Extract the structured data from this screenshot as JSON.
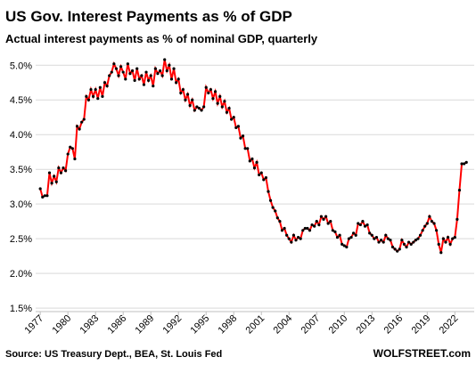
{
  "chart_data": {
    "type": "line",
    "title": "US Gov. Interest Payments as % of GDP",
    "subtitle": "Actual interest payments as % of nominal GDP, quarterly",
    "source": "Source: US Treasury Dept., BEA, St. Louis Fed",
    "brand": "WOLFSTREET.com",
    "x": [
      1977,
      1977.25,
      1977.5,
      1977.75,
      1978,
      1978.25,
      1978.5,
      1978.75,
      1979,
      1979.25,
      1979.5,
      1979.75,
      1980,
      1980.25,
      1980.5,
      1980.75,
      1981,
      1981.25,
      1981.5,
      1981.75,
      1982,
      1982.25,
      1982.5,
      1982.75,
      1983,
      1983.25,
      1983.5,
      1983.75,
      1984,
      1984.25,
      1984.5,
      1984.75,
      1985,
      1985.25,
      1985.5,
      1985.75,
      1986,
      1986.25,
      1986.5,
      1986.75,
      1987,
      1987.25,
      1987.5,
      1987.75,
      1988,
      1988.25,
      1988.5,
      1988.75,
      1989,
      1989.25,
      1989.5,
      1989.75,
      1990,
      1990.25,
      1990.5,
      1990.75,
      1991,
      1991.25,
      1991.5,
      1991.75,
      1992,
      1992.25,
      1992.5,
      1992.75,
      1993,
      1993.25,
      1993.5,
      1993.75,
      1994,
      1994.25,
      1994.5,
      1994.75,
      1995,
      1995.25,
      1995.5,
      1995.75,
      1996,
      1996.25,
      1996.5,
      1996.75,
      1997,
      1997.25,
      1997.5,
      1997.75,
      1998,
      1998.25,
      1998.5,
      1998.75,
      1999,
      1999.25,
      1999.5,
      1999.75,
      2000,
      2000.25,
      2000.5,
      2000.75,
      2001,
      2001.25,
      2001.5,
      2001.75,
      2002,
      2002.25,
      2002.5,
      2002.75,
      2003,
      2003.25,
      2003.5,
      2003.75,
      2004,
      2004.25,
      2004.5,
      2004.75,
      2005,
      2005.25,
      2005.5,
      2005.75,
      2006,
      2006.25,
      2006.5,
      2006.75,
      2007,
      2007.25,
      2007.5,
      2007.75,
      2008,
      2008.25,
      2008.5,
      2008.75,
      2009,
      2009.25,
      2009.5,
      2009.75,
      2010,
      2010.25,
      2010.5,
      2010.75,
      2011,
      2011.25,
      2011.5,
      2011.75,
      2012,
      2012.25,
      2012.5,
      2012.75,
      2013,
      2013.25,
      2013.5,
      2013.75,
      2014,
      2014.25,
      2014.5,
      2014.75,
      2015,
      2015.25,
      2015.5,
      2015.75,
      2016,
      2016.25,
      2016.5,
      2016.75,
      2017,
      2017.25,
      2017.5,
      2017.75,
      2018,
      2018.25,
      2018.5,
      2018.75,
      2019,
      2019.25,
      2019.5,
      2019.75,
      2020,
      2020.25,
      2020.5,
      2020.75,
      2021,
      2021.25,
      2021.5,
      2021.75,
      2022,
      2022.25,
      2022.5,
      2022.75,
      2023,
      2023.25
    ],
    "series": [
      {
        "name": "Interest payments as % of GDP",
        "color": "#ff0000",
        "marker_color": "#000000",
        "values": [
          3.22,
          3.1,
          3.12,
          3.12,
          3.45,
          3.3,
          3.4,
          3.32,
          3.52,
          3.45,
          3.52,
          3.48,
          3.72,
          3.82,
          3.8,
          3.65,
          4.12,
          4.08,
          4.18,
          4.22,
          4.55,
          4.5,
          4.65,
          4.55,
          4.65,
          4.52,
          4.68,
          4.55,
          4.75,
          4.7,
          4.85,
          4.9,
          5.02,
          4.95,
          4.85,
          4.98,
          4.9,
          4.8,
          5.02,
          4.88,
          4.92,
          4.78,
          4.95,
          4.8,
          4.85,
          4.72,
          4.9,
          4.78,
          4.85,
          4.7,
          4.95,
          4.88,
          4.92,
          4.85,
          5.08,
          4.92,
          5.0,
          4.8,
          4.95,
          4.75,
          4.8,
          4.6,
          4.65,
          4.5,
          4.58,
          4.42,
          4.5,
          4.35,
          4.4,
          4.38,
          4.35,
          4.4,
          4.68,
          4.6,
          4.65,
          4.52,
          4.62,
          4.45,
          4.55,
          4.4,
          4.48,
          4.32,
          4.38,
          4.22,
          4.25,
          4.1,
          4.12,
          3.95,
          3.98,
          3.8,
          3.8,
          3.62,
          3.65,
          3.52,
          3.6,
          3.42,
          3.45,
          3.35,
          3.38,
          3.18,
          3.05,
          2.95,
          2.9,
          2.8,
          2.75,
          2.62,
          2.65,
          2.55,
          2.5,
          2.45,
          2.55,
          2.48,
          2.52,
          2.5,
          2.62,
          2.65,
          2.65,
          2.62,
          2.7,
          2.68,
          2.75,
          2.7,
          2.82,
          2.78,
          2.82,
          2.72,
          2.75,
          2.62,
          2.6,
          2.52,
          2.55,
          2.42,
          2.4,
          2.38,
          2.5,
          2.52,
          2.58,
          2.55,
          2.72,
          2.7,
          2.75,
          2.68,
          2.7,
          2.58,
          2.55,
          2.5,
          2.52,
          2.45,
          2.48,
          2.45,
          2.55,
          2.5,
          2.48,
          2.38,
          2.35,
          2.32,
          2.35,
          2.48,
          2.42,
          2.38,
          2.45,
          2.42,
          2.45,
          2.48,
          2.5,
          2.55,
          2.62,
          2.68,
          2.72,
          2.82,
          2.75,
          2.72,
          2.62,
          2.42,
          2.3,
          2.5,
          2.45,
          2.52,
          2.42,
          2.5,
          2.52,
          2.78,
          3.2,
          3.58,
          3.58,
          3.6
        ]
      }
    ],
    "xlim": [
      1976.5,
      2024.1
    ],
    "ylim": [
      1.45,
      5.17
    ],
    "xticks": [
      1977,
      1980,
      1983,
      1986,
      1989,
      1992,
      1995,
      1998,
      2001,
      2004,
      2007,
      2010,
      2013,
      2016,
      2019,
      2022
    ],
    "yticks": [
      {
        "value": 1.5,
        "label": "1.5%"
      },
      {
        "value": 2.0,
        "label": "2.0%"
      },
      {
        "value": 2.5,
        "label": "2.5%"
      },
      {
        "value": 3.0,
        "label": "3.0%"
      },
      {
        "value": 3.5,
        "label": "3.5%"
      },
      {
        "value": 4.0,
        "label": "4.0%"
      },
      {
        "value": 4.5,
        "label": "4.5%"
      },
      {
        "value": 5.0,
        "label": "5.0%"
      }
    ],
    "grid": true
  }
}
